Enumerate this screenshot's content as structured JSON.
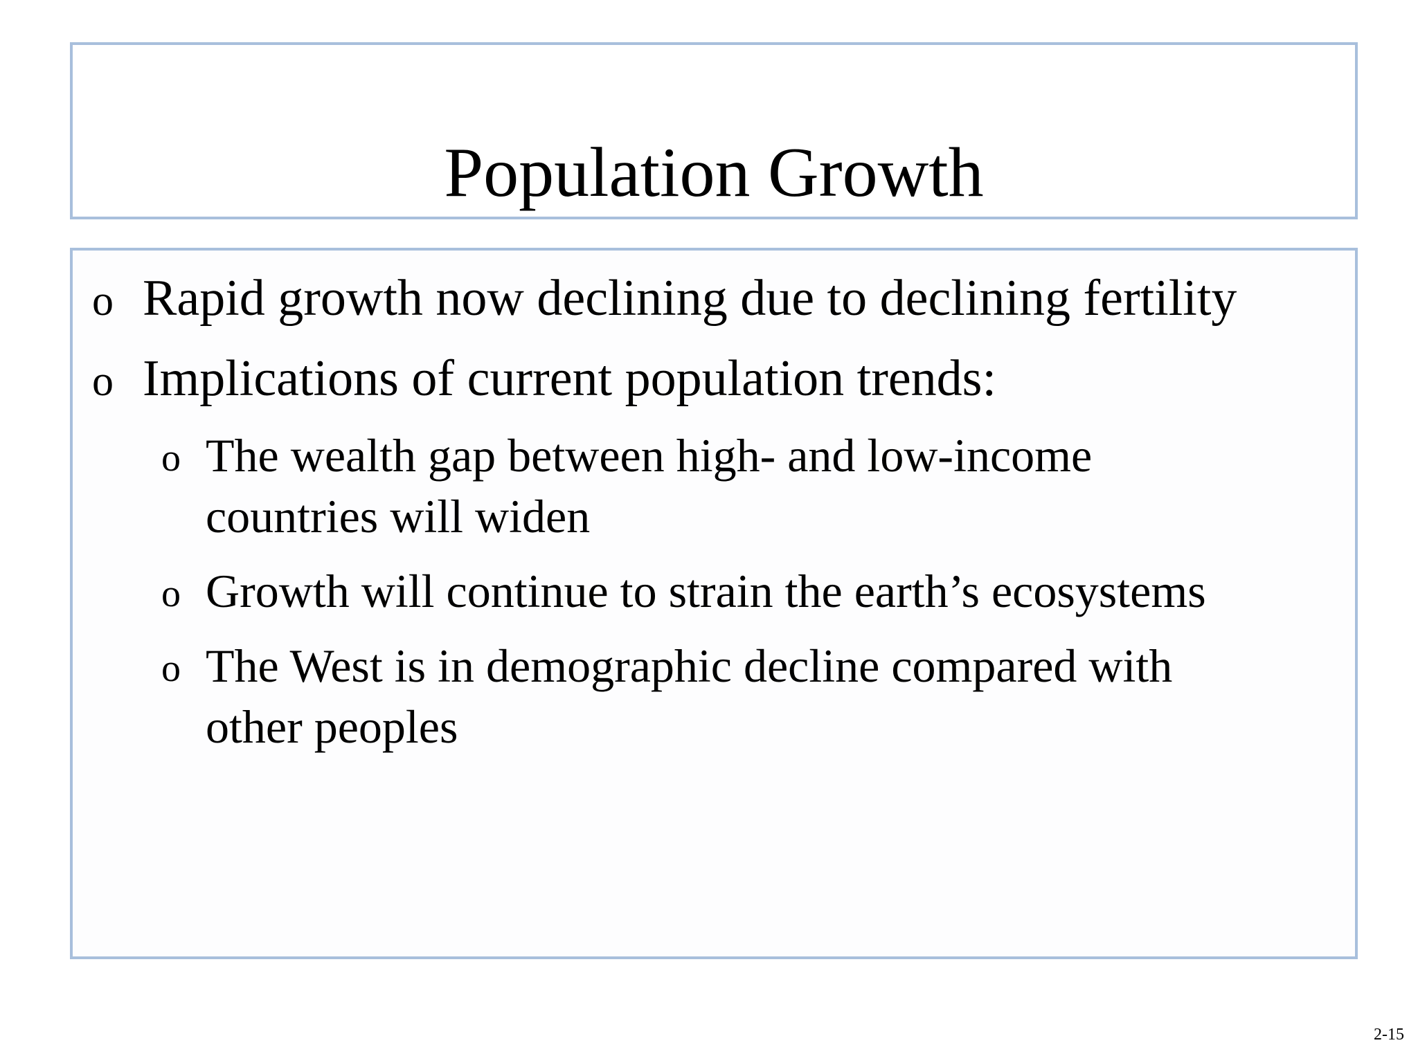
{
  "slide": {
    "title": "Population Growth",
    "page_number": "2-15",
    "bullets": [
      {
        "marker": "o",
        "text": "Rapid growth now declining due to declining fertility"
      },
      {
        "marker": "o",
        "text": "Implications of current population trends:"
      }
    ],
    "sub_bullets": [
      {
        "marker": "o",
        "line1": "The wealth gap between high- and low-income",
        "line2": "countries will widen"
      },
      {
        "marker": "o",
        "line1": "Growth will continue to strain the earth’s ecosystems"
      },
      {
        "marker": "o",
        "line1": "The West is in demographic decline compared with",
        "line2": "other peoples"
      }
    ],
    "colors": {
      "box_border": "#a8bfdc",
      "text": "#000000",
      "background": "#ffffff"
    }
  }
}
